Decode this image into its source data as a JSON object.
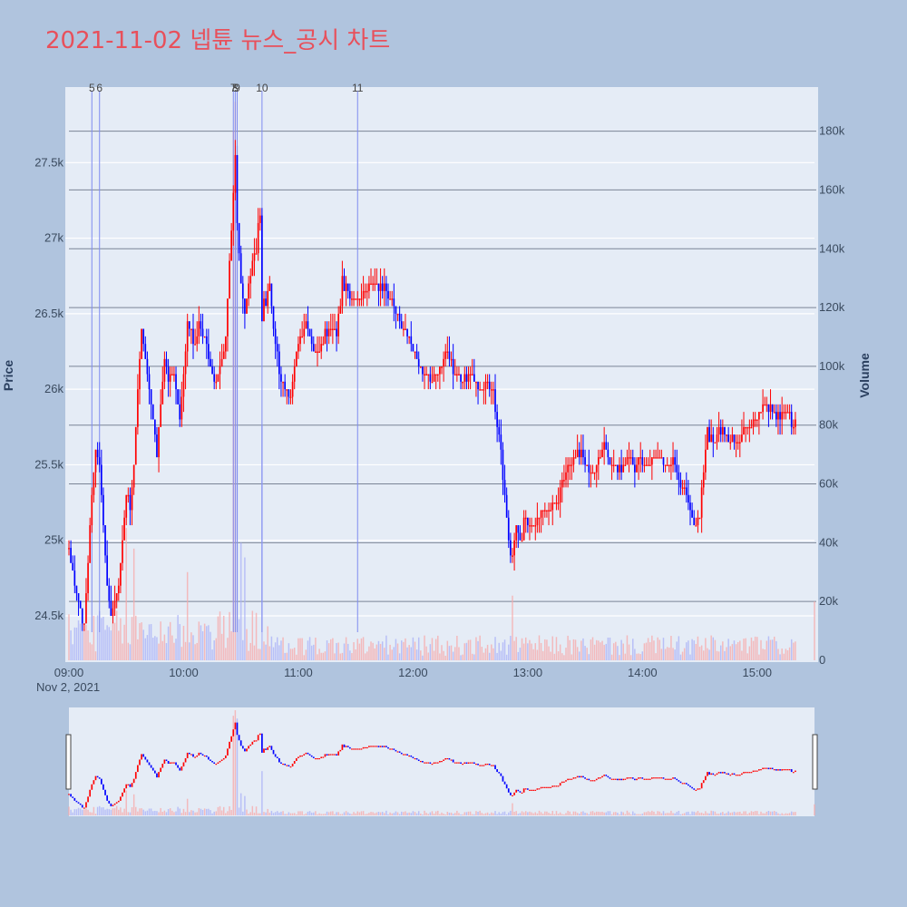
{
  "chart_data": {
    "type": "candlestick",
    "title": "2021-11-02 넵튠 뉴스_공시 차트",
    "date_label": "Nov 2, 2021",
    "ylabel": "Price",
    "y2label": "Volume",
    "price_range": [
      24200,
      28000
    ],
    "volume_range": [
      0,
      195000
    ],
    "price_ticks": [
      {
        "v": 24500,
        "label": "24.5k"
      },
      {
        "v": 25000,
        "label": "25k"
      },
      {
        "v": 25500,
        "label": "25.5k"
      },
      {
        "v": 26000,
        "label": "26k"
      },
      {
        "v": 26500,
        "label": "26.5k"
      },
      {
        "v": 27000,
        "label": "27k"
      },
      {
        "v": 27500,
        "label": "27.5k"
      }
    ],
    "volume_ticks": [
      {
        "v": 0,
        "label": "0"
      },
      {
        "v": 20000,
        "label": "20k"
      },
      {
        "v": 40000,
        "label": "40k"
      },
      {
        "v": 60000,
        "label": "60k"
      },
      {
        "v": 80000,
        "label": "80k"
      },
      {
        "v": 100000,
        "label": "100k"
      },
      {
        "v": 120000,
        "label": "120k"
      },
      {
        "v": 140000,
        "label": "140k"
      },
      {
        "v": 160000,
        "label": "160k"
      },
      {
        "v": 180000,
        "label": "180k"
      }
    ],
    "x_ticks": [
      "09:00",
      "10:00",
      "11:00",
      "12:00",
      "13:00",
      "14:00",
      "15:00"
    ],
    "up_color": "#ff0000",
    "down_color": "#0000ff",
    "annotations": [
      {
        "label": "5",
        "time": "09:12"
      },
      {
        "label": "6",
        "time": "09:16"
      },
      {
        "label": "7",
        "time": "10:26"
      },
      {
        "label": "8",
        "time": "10:27"
      },
      {
        "label": "9",
        "time": "10:28"
      },
      {
        "label": "10",
        "time": "10:41"
      },
      {
        "label": "11",
        "time": "11:31"
      }
    ],
    "price_path": [
      [
        "09:00",
        24950
      ],
      [
        "09:03",
        24700
      ],
      [
        "09:06",
        24550
      ],
      [
        "09:08",
        24450
      ],
      [
        "09:10",
        24900
      ],
      [
        "09:12",
        25300
      ],
      [
        "09:14",
        25600
      ],
      [
        "09:16",
        25500
      ],
      [
        "09:18",
        25100
      ],
      [
        "09:20",
        24700
      ],
      [
        "09:22",
        24500
      ],
      [
        "09:24",
        24600
      ],
      [
        "09:26",
        24700
      ],
      [
        "09:28",
        25000
      ],
      [
        "09:30",
        25300
      ],
      [
        "09:32",
        25250
      ],
      [
        "09:34",
        25500
      ],
      [
        "09:36",
        26000
      ],
      [
        "09:38",
        26400
      ],
      [
        "09:40",
        26200
      ],
      [
        "09:42",
        26000
      ],
      [
        "09:44",
        25800
      ],
      [
        "09:46",
        25550
      ],
      [
        "09:48",
        25900
      ],
      [
        "09:50",
        26200
      ],
      [
        "09:52",
        26050
      ],
      [
        "09:54",
        26100
      ],
      [
        "09:56",
        26000
      ],
      [
        "09:58",
        25800
      ],
      [
        "10:00",
        26100
      ],
      [
        "10:02",
        26450
      ],
      [
        "10:04",
        26400
      ],
      [
        "10:06",
        26300
      ],
      [
        "10:08",
        26400
      ],
      [
        "10:10",
        26350
      ],
      [
        "10:12",
        26300
      ],
      [
        "10:14",
        26100
      ],
      [
        "10:16",
        26050
      ],
      [
        "10:18",
        26100
      ],
      [
        "10:20",
        26200
      ],
      [
        "10:22",
        26350
      ],
      [
        "10:24",
        26800
      ],
      [
        "10:26",
        27300
      ],
      [
        "10:27",
        27600
      ],
      [
        "10:28",
        27100
      ],
      [
        "10:30",
        26700
      ],
      [
        "10:32",
        26500
      ],
      [
        "10:34",
        26700
      ],
      [
        "10:36",
        26800
      ],
      [
        "10:38",
        26950
      ],
      [
        "10:40",
        27150
      ],
      [
        "10:41",
        26500
      ],
      [
        "10:43",
        26600
      ],
      [
        "10:45",
        26700
      ],
      [
        "10:48",
        26300
      ],
      [
        "10:50",
        26100
      ],
      [
        "10:53",
        26000
      ],
      [
        "10:56",
        25950
      ],
      [
        "10:58",
        26200
      ],
      [
        "11:00",
        26300
      ],
      [
        "11:04",
        26450
      ],
      [
        "11:08",
        26250
      ],
      [
        "11:12",
        26300
      ],
      [
        "11:16",
        26400
      ],
      [
        "11:20",
        26350
      ],
      [
        "11:23",
        26700
      ],
      [
        "11:26",
        26650
      ],
      [
        "11:30",
        26600
      ],
      [
        "11:35",
        26650
      ],
      [
        "11:40",
        26700
      ],
      [
        "11:45",
        26650
      ],
      [
        "11:50",
        26550
      ],
      [
        "11:54",
        26400
      ],
      [
        "11:58",
        26350
      ],
      [
        "12:02",
        26200
      ],
      [
        "12:06",
        26100
      ],
      [
        "12:10",
        26050
      ],
      [
        "12:14",
        26150
      ],
      [
        "12:18",
        26250
      ],
      [
        "12:22",
        26100
      ],
      [
        "12:26",
        26050
      ],
      [
        "12:30",
        26100
      ],
      [
        "12:34",
        26000
      ],
      [
        "12:38",
        26050
      ],
      [
        "12:42",
        26000
      ],
      [
        "12:45",
        25700
      ],
      [
        "12:48",
        25300
      ],
      [
        "12:50",
        25000
      ],
      [
        "12:52",
        24900
      ],
      [
        "12:54",
        25100
      ],
      [
        "12:56",
        24950
      ],
      [
        "12:58",
        25150
      ],
      [
        "13:00",
        25100
      ],
      [
        "13:04",
        25100
      ],
      [
        "13:08",
        25200
      ],
      [
        "13:12",
        25250
      ],
      [
        "13:16",
        25300
      ],
      [
        "13:20",
        25450
      ],
      [
        "13:24",
        25550
      ],
      [
        "13:28",
        25600
      ],
      [
        "13:32",
        25450
      ],
      [
        "13:36",
        25500
      ],
      [
        "13:40",
        25650
      ],
      [
        "13:44",
        25500
      ],
      [
        "13:48",
        25450
      ],
      [
        "13:52",
        25550
      ],
      [
        "13:56",
        25500
      ],
      [
        "14:00",
        25500
      ],
      [
        "14:04",
        25500
      ],
      [
        "14:08",
        25550
      ],
      [
        "14:12",
        25500
      ],
      [
        "14:16",
        25550
      ],
      [
        "14:20",
        25350
      ],
      [
        "14:24",
        25250
      ],
      [
        "14:28",
        25100
      ],
      [
        "14:30",
        25150
      ],
      [
        "14:32",
        25500
      ],
      [
        "14:34",
        25700
      ],
      [
        "14:37",
        25650
      ],
      [
        "14:40",
        25750
      ],
      [
        "14:44",
        25700
      ],
      [
        "14:48",
        25650
      ],
      [
        "14:52",
        25700
      ],
      [
        "14:56",
        25750
      ],
      [
        "15:00",
        25800
      ],
      [
        "15:04",
        25900
      ],
      [
        "15:08",
        25850
      ],
      [
        "15:12",
        25800
      ],
      [
        "15:16",
        25850
      ],
      [
        "15:19",
        25750
      ],
      [
        "15:20",
        25800
      ]
    ],
    "volume_spikes": [
      [
        "10:26",
        180000
      ],
      [
        "10:27",
        190000
      ],
      [
        "10:28",
        175000
      ],
      [
        "10:41",
        80000
      ],
      [
        "10:30",
        40000
      ],
      [
        "10:32",
        35000
      ],
      [
        "09:30",
        45000
      ],
      [
        "09:34",
        38000
      ],
      [
        "10:02",
        30000
      ],
      [
        "12:52",
        22000
      ],
      [
        "15:30",
        20000
      ]
    ]
  }
}
